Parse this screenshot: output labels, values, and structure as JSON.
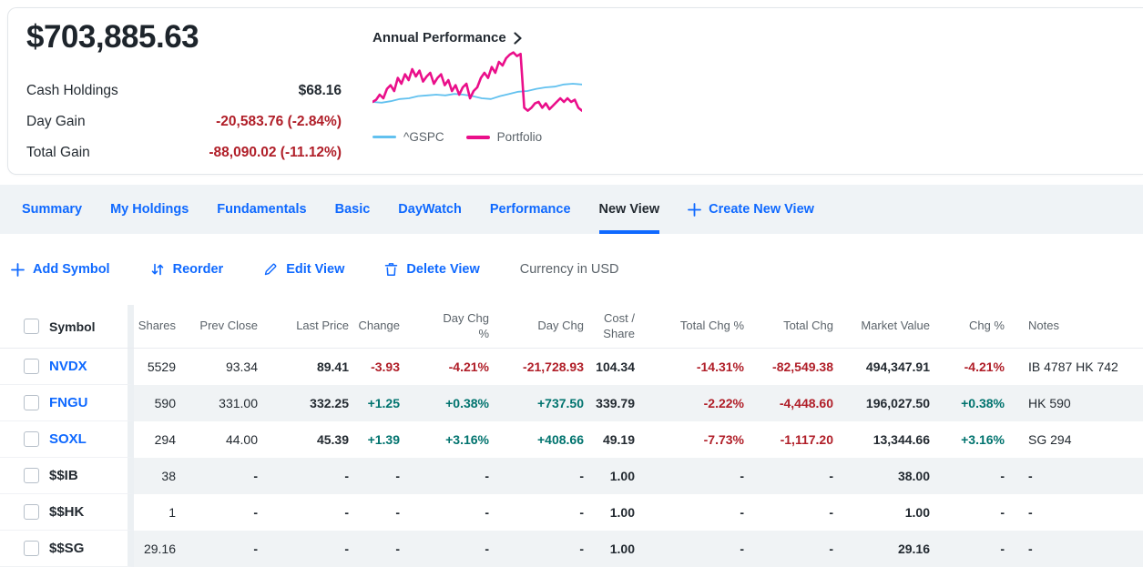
{
  "colors": {
    "accent": "#0f69ff",
    "negative": "#b01e28",
    "positive": "#00736e",
    "portfolio_line": "#ea0f8a",
    "benchmark_line": "#62c1ef",
    "stripe": "#f0f3f5",
    "tabbar_bg": "#eff3f6",
    "text_dark": "#232a31",
    "text_gray": "#5b636a"
  },
  "summary": {
    "total_value": "$703,885.63",
    "stats": [
      {
        "label": "Cash Holdings",
        "value": "$68.16",
        "tone": "dark"
      },
      {
        "label": "Day Gain",
        "value": "-20,583.76 (-2.84%)",
        "tone": "red"
      },
      {
        "label": "Total Gain",
        "value": "-88,090.02 (-11.12%)",
        "tone": "red"
      }
    ],
    "chart_title": "Annual Performance"
  },
  "chart_data": {
    "type": "line",
    "title": "Annual Performance",
    "xlabel": "",
    "ylabel": "",
    "axes_hidden": true,
    "legend_position": "bottom",
    "legend": [
      "^GSPC",
      "Portfolio"
    ],
    "values_are": "relative height percent (estimated from unlabeled sparkline, 1-year span)",
    "ylim": [
      0,
      100
    ],
    "series": [
      {
        "name": "^GSPC",
        "color": "#62c1ef",
        "values": [
          30,
          29,
          31,
          34,
          35,
          38,
          39,
          40,
          39,
          41,
          40,
          38,
          35,
          34,
          38,
          41,
          44,
          45,
          48,
          50,
          51,
          54,
          55,
          54
        ]
      },
      {
        "name": "Portfolio",
        "color": "#ea0f8a",
        "values": [
          30,
          33,
          40,
          35,
          48,
          53,
          45,
          63,
          55,
          68,
          60,
          75,
          65,
          73,
          58,
          65,
          70,
          55,
          63,
          68,
          53,
          60,
          45,
          53,
          40,
          50,
          55,
          35,
          45,
          50,
          63,
          70,
          63,
          78,
          70,
          85,
          80,
          90,
          95,
          98,
          93,
          96,
          22,
          18,
          22,
          28,
          30,
          22,
          28,
          20,
          25,
          30,
          35,
          30,
          35,
          30,
          33,
          22,
          18
        ]
      }
    ]
  },
  "tabs": {
    "items": [
      "Summary",
      "My Holdings",
      "Fundamentals",
      "Basic",
      "DayWatch",
      "Performance",
      "New View"
    ],
    "active": "New View",
    "create_label": "Create New View"
  },
  "toolbar": {
    "items": [
      {
        "icon": "plus",
        "label": "Add Symbol"
      },
      {
        "icon": "reorder",
        "label": "Reorder"
      },
      {
        "icon": "pencil",
        "label": "Edit View"
      },
      {
        "icon": "trash",
        "label": "Delete View"
      }
    ],
    "currency_label": "Currency in USD"
  },
  "table": {
    "headers": [
      "Symbol",
      "Shares",
      "Prev Close",
      "Last Price",
      "Change",
      "Day Chg\n%",
      "Day Chg",
      "Cost /\nShare",
      "Total Chg %",
      "Total Chg",
      "Market Value",
      "Chg %",
      "Notes"
    ],
    "rows": [
      {
        "symbol": "NVDX",
        "symbol_style": "link",
        "cells": [
          {
            "t": "5529",
            "s": "plain"
          },
          {
            "t": "93.34",
            "s": "plain"
          },
          {
            "t": "89.41",
            "s": "bold"
          },
          {
            "t": "-3.93",
            "s": "red"
          },
          {
            "t": "-4.21%",
            "s": "red"
          },
          {
            "t": "-21,728.93",
            "s": "red"
          },
          {
            "t": "104.34",
            "s": "bold"
          },
          {
            "t": "-14.31%",
            "s": "red"
          },
          {
            "t": "-82,549.38",
            "s": "red"
          },
          {
            "t": "494,347.91",
            "s": "bold"
          },
          {
            "t": "-4.21%",
            "s": "red"
          },
          {
            "t": "IB 4787 HK 742",
            "s": "note"
          }
        ]
      },
      {
        "symbol": "FNGU",
        "symbol_style": "link",
        "cells": [
          {
            "t": "590",
            "s": "plain"
          },
          {
            "t": "331.00",
            "s": "plain"
          },
          {
            "t": "332.25",
            "s": "bold"
          },
          {
            "t": "+1.25",
            "s": "green"
          },
          {
            "t": "+0.38%",
            "s": "green"
          },
          {
            "t": "+737.50",
            "s": "green"
          },
          {
            "t": "339.79",
            "s": "bold"
          },
          {
            "t": "-2.22%",
            "s": "red"
          },
          {
            "t": "-4,448.60",
            "s": "red"
          },
          {
            "t": "196,027.50",
            "s": "bold"
          },
          {
            "t": "+0.38%",
            "s": "green"
          },
          {
            "t": "HK 590",
            "s": "note"
          }
        ]
      },
      {
        "symbol": "SOXL",
        "symbol_style": "link",
        "cells": [
          {
            "t": "294",
            "s": "plain"
          },
          {
            "t": "44.00",
            "s": "plain"
          },
          {
            "t": "45.39",
            "s": "bold"
          },
          {
            "t": "+1.39",
            "s": "green"
          },
          {
            "t": "+3.16%",
            "s": "green"
          },
          {
            "t": "+408.66",
            "s": "green"
          },
          {
            "t": "49.19",
            "s": "bold"
          },
          {
            "t": "-7.73%",
            "s": "red"
          },
          {
            "t": "-1,117.20",
            "s": "red"
          },
          {
            "t": "13,344.66",
            "s": "bold"
          },
          {
            "t": "+3.16%",
            "s": "green"
          },
          {
            "t": "SG 294",
            "s": "note"
          }
        ]
      },
      {
        "symbol": "$$IB",
        "symbol_style": "plain",
        "cells": [
          {
            "t": "38",
            "s": "plain"
          },
          {
            "t": "-",
            "s": "dash"
          },
          {
            "t": "-",
            "s": "dash"
          },
          {
            "t": "-",
            "s": "dash"
          },
          {
            "t": "-",
            "s": "dash"
          },
          {
            "t": "-",
            "s": "dash"
          },
          {
            "t": "1.00",
            "s": "bold"
          },
          {
            "t": "-",
            "s": "dash"
          },
          {
            "t": "-",
            "s": "dash"
          },
          {
            "t": "38.00",
            "s": "bold"
          },
          {
            "t": "-",
            "s": "dash"
          },
          {
            "t": "-",
            "s": "dash"
          }
        ]
      },
      {
        "symbol": "$$HK",
        "symbol_style": "plain",
        "cells": [
          {
            "t": "1",
            "s": "plain"
          },
          {
            "t": "-",
            "s": "dash"
          },
          {
            "t": "-",
            "s": "dash"
          },
          {
            "t": "-",
            "s": "dash"
          },
          {
            "t": "-",
            "s": "dash"
          },
          {
            "t": "-",
            "s": "dash"
          },
          {
            "t": "1.00",
            "s": "bold"
          },
          {
            "t": "-",
            "s": "dash"
          },
          {
            "t": "-",
            "s": "dash"
          },
          {
            "t": "1.00",
            "s": "bold"
          },
          {
            "t": "-",
            "s": "dash"
          },
          {
            "t": "-",
            "s": "dash"
          }
        ]
      },
      {
        "symbol": "$$SG",
        "symbol_style": "plain",
        "cells": [
          {
            "t": "29.16",
            "s": "plain"
          },
          {
            "t": "-",
            "s": "dash"
          },
          {
            "t": "-",
            "s": "dash"
          },
          {
            "t": "-",
            "s": "dash"
          },
          {
            "t": "-",
            "s": "dash"
          },
          {
            "t": "-",
            "s": "dash"
          },
          {
            "t": "1.00",
            "s": "bold"
          },
          {
            "t": "-",
            "s": "dash"
          },
          {
            "t": "-",
            "s": "dash"
          },
          {
            "t": "29.16",
            "s": "bold"
          },
          {
            "t": "-",
            "s": "dash"
          },
          {
            "t": "-",
            "s": "dash"
          }
        ]
      }
    ]
  }
}
